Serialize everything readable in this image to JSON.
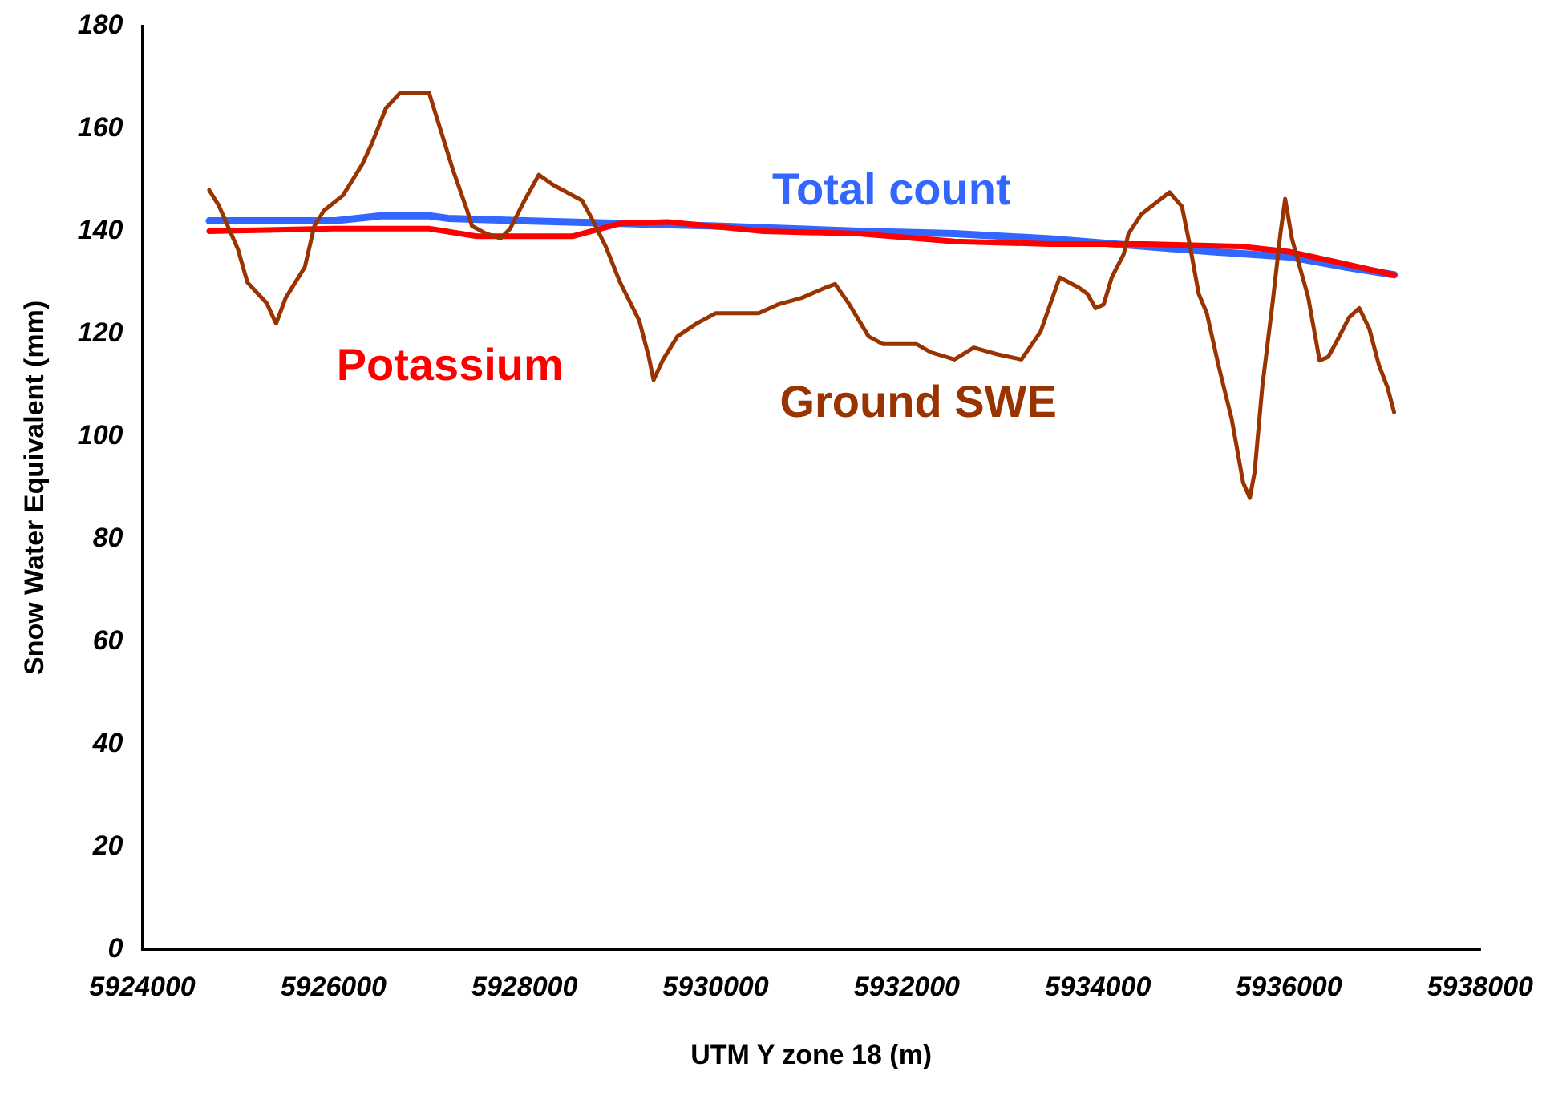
{
  "chart_data": {
    "type": "line",
    "xlabel": "UTM Y zone 18 (m)",
    "ylabel": "Snow Water Equivalent (mm)",
    "xlim": [
      5924000,
      5938000
    ],
    "xticks": [
      5924000,
      5926000,
      5928000,
      5930000,
      5932000,
      5934000,
      5936000,
      5938000
    ],
    "ylim": [
      0,
      180
    ],
    "yticks": [
      0,
      20,
      40,
      60,
      80,
      100,
      120,
      140,
      160,
      180
    ],
    "grid": false,
    "legend": false,
    "marker": "none",
    "line_style": "solid",
    "series": [
      {
        "name": "Total count",
        "color": "#3366ff",
        "x": [
          5924700,
          5926000,
          5926500,
          5927000,
          5927200,
          5928000,
          5929000,
          5930000,
          5931500,
          5932500,
          5933500,
          5934500,
          5935200,
          5936000,
          5936600,
          5937100
        ],
        "values": [
          142,
          142,
          143,
          143,
          142.5,
          142,
          141.5,
          141,
          140,
          139.5,
          138.5,
          137,
          136,
          135,
          133,
          131.5
        ]
      },
      {
        "name": "Potassium",
        "color": "#ff0000",
        "x": [
          5924700,
          5926000,
          5927000,
          5927500,
          5928500,
          5929000,
          5929500,
          5930500,
          5931500,
          5932500,
          5933500,
          5934500,
          5935500,
          5936000,
          5936500,
          5937100
        ],
        "values": [
          140,
          140.5,
          140.5,
          139,
          139,
          141.5,
          141.8,
          140,
          139.5,
          138,
          137.5,
          137.5,
          137,
          136,
          134,
          131.5
        ]
      },
      {
        "name": "Ground SWE",
        "color": "#993300",
        "x": [
          5924700,
          5924800,
          5925000,
          5925100,
          5925300,
          5925400,
          5925500,
          5925700,
          5925800,
          5925900,
          5926100,
          5926300,
          5926400,
          5926550,
          5926700,
          5927000,
          5927100,
          5927250,
          5927400,
          5927450,
          5927600,
          5927750,
          5927850,
          5928000,
          5928150,
          5928300,
          5928600,
          5928700,
          5928850,
          5929000,
          5929200,
          5929300,
          5929350,
          5929450,
          5929600,
          5929800,
          5930000,
          5930450,
          5930650,
          5930900,
          5931150,
          5931250,
          5931400,
          5931600,
          5931750,
          5932100,
          5932250,
          5932500,
          5932700,
          5932950,
          5933200,
          5933400,
          5933600,
          5933800,
          5933890,
          5933975,
          5934060,
          5934145,
          5934270,
          5934320,
          5934455,
          5934750,
          5934880,
          5934970,
          5935055,
          5935140,
          5935260,
          5935400,
          5935520,
          5935590,
          5935640,
          5935720,
          5935830,
          5935910,
          5935960,
          5936030,
          5936200,
          5936320,
          5936410,
          5936510,
          5936630,
          5936735,
          5936840,
          5936940,
          5937030,
          5937100
        ],
        "values": [
          148,
          145,
          136.5,
          130,
          126,
          122,
          127,
          133,
          141,
          144,
          147,
          153,
          157,
          164,
          167,
          167,
          161,
          152,
          144,
          141,
          139.5,
          138.6,
          140.5,
          146,
          151,
          149,
          146,
          142.6,
          137,
          130,
          122.6,
          115.5,
          111,
          115,
          119.5,
          122,
          124,
          124,
          125.7,
          127,
          129,
          129.7,
          125.7,
          119.5,
          118,
          118,
          116.4,
          115,
          117.3,
          116,
          115,
          120.4,
          131,
          129,
          127.8,
          125,
          125.7,
          131,
          135.5,
          139.5,
          143.3,
          147.6,
          144.8,
          136.5,
          127.8,
          124,
          114,
          103.4,
          91,
          88,
          93,
          109.6,
          126.3,
          139.5,
          146.3,
          138.6,
          127.2,
          114.8,
          115.5,
          118.9,
          123.2,
          125,
          121,
          114,
          109.6,
          104.7
        ]
      }
    ]
  }
}
